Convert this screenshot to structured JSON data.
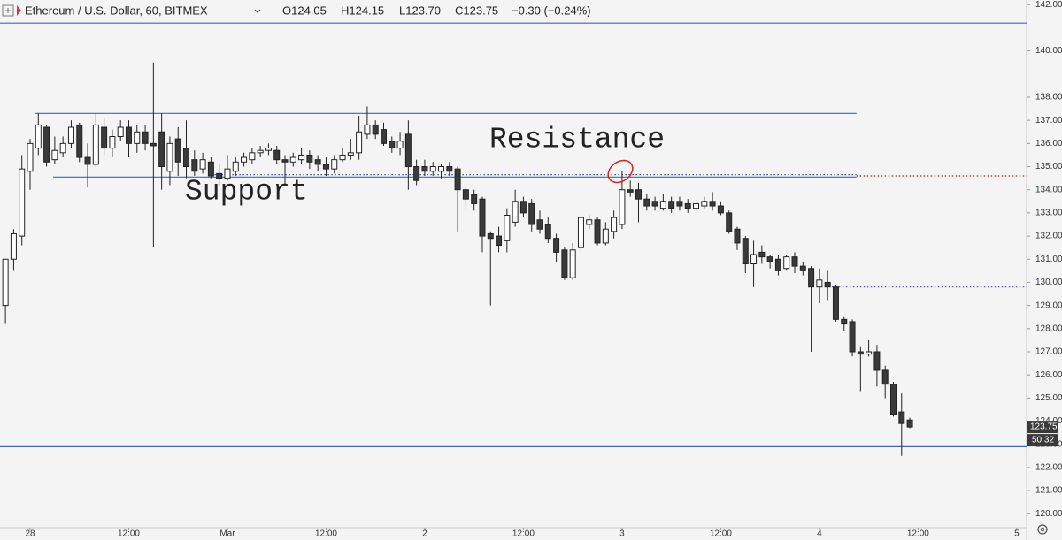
{
  "chart_data": {
    "type": "candlestick",
    "title": "Ethereum / U.S. Dollar, 60, BITMEX",
    "legend": [
      "O124.05",
      "H124.15",
      "L123.70",
      "C123.75",
      "−0.30 (−0.24%)"
    ],
    "countdown": "50:32",
    "annotations": [
      "Resistance",
      "Support"
    ],
    "up_color": "#ffffff",
    "down_color": "#3a3a3a",
    "xlim": [
      -3.66,
      121.2
    ],
    "xticks": [
      {
        "value": 0,
        "label": "28"
      },
      {
        "value": 12,
        "label": "12:00"
      },
      {
        "value": 24,
        "label": "Mar"
      },
      {
        "value": 36,
        "label": "12:00"
      },
      {
        "value": 48,
        "label": "2"
      },
      {
        "value": 60,
        "label": "12:00"
      },
      {
        "value": 72,
        "label": "3"
      },
      {
        "value": 84,
        "label": "12:00"
      },
      {
        "value": 96,
        "label": "4"
      },
      {
        "value": 108,
        "label": "12:00"
      },
      {
        "value": 120,
        "label": "5"
      }
    ],
    "ylim": [
      119.4,
      142.2
    ],
    "yticks": [
      {
        "value": 120,
        "label": "120.00"
      },
      {
        "value": 121,
        "label": "121.00"
      },
      {
        "value": 122,
        "label": "122.00"
      },
      {
        "value": 123,
        "label": "123.00"
      },
      {
        "value": 124,
        "label": "124.00"
      },
      {
        "value": 125,
        "label": "125.00"
      },
      {
        "value": 126,
        "label": "126.00"
      },
      {
        "value": 127,
        "label": "127.00"
      },
      {
        "value": 128,
        "label": "128.00"
      },
      {
        "value": 129,
        "label": "129.00"
      },
      {
        "value": 130,
        "label": "130.00"
      },
      {
        "value": 131,
        "label": "131.00"
      },
      {
        "value": 132,
        "label": "132.00"
      },
      {
        "value": 133,
        "label": "133.00"
      },
      {
        "value": 134,
        "label": "134.00"
      },
      {
        "value": 135,
        "label": "135.00"
      },
      {
        "value": 136,
        "label": "136.00"
      },
      {
        "value": 137,
        "label": "137.00"
      },
      {
        "value": 138,
        "label": "138.00"
      },
      {
        "value": 140,
        "label": "140.00"
      },
      {
        "value": 142,
        "label": "142.00"
      }
    ],
    "lines": [
      {
        "value": 141.2,
        "color": "#3f65c8",
        "style": "solid"
      },
      {
        "value": 122.9,
        "color": "#3f65c8",
        "style": "solid"
      },
      {
        "value": 137.3,
        "color": "#3f65c8",
        "style": "solid",
        "x_range": [
          0.6,
          100.5
        ]
      },
      {
        "value": 134.55,
        "color": "#3f65c8",
        "style": "solid",
        "x_range": [
          2.8,
          100.5
        ]
      },
      {
        "value": 134.65,
        "color": "#1f3a8a",
        "style": "dotted",
        "x_range": [
          22,
          100.5
        ]
      },
      {
        "value": 134.6,
        "color": "#b22222",
        "style": "dotted",
        "x_range": [
          100.5,
          121.2
        ]
      },
      {
        "value": 129.8,
        "color": "#5b3fd0",
        "style": "dotted",
        "x_range": [
          97.5,
          121.2
        ]
      }
    ],
    "x": [
      -3,
      -2,
      -1,
      0,
      1,
      2,
      3,
      4,
      5,
      6,
      7,
      8,
      9,
      10,
      11,
      12,
      13,
      14,
      15,
      16,
      17,
      18,
      19,
      20,
      21,
      22,
      23,
      24,
      25,
      26,
      27,
      28,
      29,
      30,
      31,
      32,
      33,
      34,
      35,
      36,
      37,
      38,
      39,
      40,
      41,
      42,
      43,
      44,
      45,
      46,
      47,
      48,
      49,
      50,
      51,
      52,
      53,
      54,
      55,
      56,
      57,
      58,
      59,
      60,
      61,
      62,
      63,
      64,
      65,
      66,
      67,
      68,
      69,
      70,
      71,
      72,
      73,
      74,
      75,
      76,
      77,
      78,
      79,
      80,
      81,
      82,
      83,
      84,
      85,
      86,
      87,
      88,
      89,
      90,
      91,
      92,
      93,
      94,
      95,
      96,
      97,
      98,
      99,
      100,
      101,
      102,
      103,
      104,
      105,
      106,
      107
    ],
    "ohlc": [
      [
        129.0,
        131.0,
        128.2,
        131.0
      ],
      [
        131.0,
        132.3,
        130.5,
        132.1
      ],
      [
        132.0,
        135.5,
        131.6,
        134.9
      ],
      [
        134.8,
        136.2,
        134.0,
        136.0
      ],
      [
        135.8,
        137.3,
        135.5,
        136.8
      ],
      [
        136.7,
        136.8,
        135.0,
        135.2
      ],
      [
        135.3,
        136.3,
        135.1,
        135.7
      ],
      [
        135.6,
        136.3,
        135.4,
        136.0
      ],
      [
        136.0,
        137.0,
        135.8,
        136.7
      ],
      [
        136.8,
        136.9,
        135.2,
        135.4
      ],
      [
        135.4,
        136.0,
        134.1,
        135.1
      ],
      [
        135.1,
        137.3,
        135.0,
        136.8
      ],
      [
        136.7,
        137.1,
        135.5,
        135.8
      ],
      [
        135.8,
        136.6,
        135.4,
        136.3
      ],
      [
        136.3,
        137.0,
        136.1,
        136.7
      ],
      [
        136.7,
        137.0,
        135.4,
        136.0
      ],
      [
        136.0,
        136.8,
        135.6,
        136.5
      ],
      [
        136.5,
        136.8,
        135.7,
        136.0
      ],
      [
        136.0,
        139.5,
        131.5,
        135.9
      ],
      [
        136.5,
        137.3,
        134.0,
        135.0
      ],
      [
        134.8,
        136.3,
        134.2,
        136.0
      ],
      [
        136.2,
        136.7,
        134.6,
        135.2
      ],
      [
        135.8,
        137.0,
        134.5,
        135.0
      ],
      [
        135.3,
        135.7,
        134.6,
        134.8
      ],
      [
        134.9,
        135.6,
        134.7,
        135.3
      ],
      [
        135.2,
        135.4,
        134.5,
        134.6
      ],
      [
        134.7,
        135.1,
        134.2,
        134.5
      ],
      [
        134.5,
        135.5,
        134.4,
        134.9
      ],
      [
        134.8,
        135.4,
        134.6,
        135.2
      ],
      [
        135.2,
        135.6,
        135.0,
        135.4
      ],
      [
        135.3,
        135.8,
        135.1,
        135.6
      ],
      [
        135.6,
        135.9,
        135.4,
        135.7
      ],
      [
        135.7,
        136.0,
        135.5,
        135.8
      ],
      [
        135.7,
        135.9,
        135.1,
        135.3
      ],
      [
        135.3,
        135.5,
        134.2,
        135.2
      ],
      [
        135.2,
        135.6,
        135.0,
        135.4
      ],
      [
        135.3,
        135.8,
        135.1,
        135.5
      ],
      [
        135.5,
        135.7,
        134.9,
        135.2
      ],
      [
        135.3,
        135.5,
        134.8,
        135.1
      ],
      [
        135.1,
        135.4,
        134.6,
        134.9
      ],
      [
        134.9,
        135.5,
        134.7,
        135.3
      ],
      [
        135.3,
        135.8,
        135.2,
        135.5
      ],
      [
        135.5,
        136.2,
        135.3,
        135.6
      ],
      [
        135.6,
        137.2,
        135.3,
        136.5
      ],
      [
        136.4,
        137.6,
        136.2,
        136.8
      ],
      [
        136.8,
        137.0,
        136.2,
        136.4
      ],
      [
        136.6,
        136.9,
        135.9,
        136.0
      ],
      [
        136.1,
        136.3,
        135.6,
        135.8
      ],
      [
        135.8,
        136.5,
        135.5,
        136.1
      ],
      [
        136.4,
        137.0,
        134.0,
        135.0
      ],
      [
        135.0,
        135.3,
        134.2,
        134.4
      ],
      [
        135.0,
        135.3,
        134.6,
        134.8
      ],
      [
        134.8,
        135.2,
        134.6,
        135.0
      ],
      [
        134.8,
        135.1,
        134.5,
        135.0
      ],
      [
        135.0,
        135.2,
        134.6,
        134.8
      ],
      [
        134.9,
        135.0,
        132.2,
        134.0
      ],
      [
        134.0,
        134.2,
        133.2,
        133.6
      ],
      [
        133.8,
        134.0,
        133.1,
        133.4
      ],
      [
        133.6,
        133.7,
        131.3,
        132.0
      ],
      [
        132.1,
        132.2,
        129.0,
        131.9
      ],
      [
        132.0,
        132.4,
        131.3,
        131.6
      ],
      [
        131.8,
        133.2,
        131.3,
        132.9
      ],
      [
        132.6,
        134.0,
        132.4,
        133.5
      ],
      [
        133.5,
        133.7,
        132.8,
        133.0
      ],
      [
        133.4,
        133.6,
        132.2,
        132.5
      ],
      [
        132.7,
        133.1,
        132.1,
        132.3
      ],
      [
        132.5,
        132.8,
        131.7,
        131.9
      ],
      [
        131.9,
        132.1,
        130.9,
        131.3
      ],
      [
        131.4,
        131.5,
        130.1,
        130.2
      ],
      [
        130.2,
        131.7,
        130.1,
        131.4
      ],
      [
        131.5,
        132.9,
        131.3,
        132.8
      ],
      [
        132.5,
        132.9,
        132.3,
        132.7
      ],
      [
        132.7,
        132.8,
        131.6,
        131.7
      ],
      [
        131.7,
        132.6,
        131.6,
        132.3
      ],
      [
        132.2,
        133.1,
        131.9,
        132.8
      ],
      [
        132.5,
        134.8,
        132.3,
        134.0
      ],
      [
        134.0,
        134.4,
        133.7,
        133.9
      ],
      [
        134.0,
        134.3,
        132.6,
        133.6
      ],
      [
        133.6,
        133.8,
        133.1,
        133.3
      ],
      [
        133.5,
        133.7,
        133.1,
        133.3
      ],
      [
        133.2,
        133.8,
        133.1,
        133.5
      ],
      [
        133.5,
        133.7,
        133.0,
        133.2
      ],
      [
        133.5,
        133.7,
        133.1,
        133.3
      ],
      [
        133.4,
        133.6,
        133.0,
        133.2
      ],
      [
        133.2,
        133.6,
        133.1,
        133.4
      ],
      [
        133.3,
        133.7,
        133.2,
        133.5
      ],
      [
        133.5,
        133.9,
        133.1,
        133.3
      ],
      [
        133.3,
        133.5,
        132.9,
        133.0
      ],
      [
        133.0,
        133.1,
        132.1,
        132.2
      ],
      [
        132.3,
        132.4,
        131.4,
        131.7
      ],
      [
        131.9,
        132.0,
        130.4,
        130.8
      ],
      [
        130.8,
        131.8,
        129.8,
        131.2
      ],
      [
        131.3,
        131.6,
        130.8,
        131.1
      ],
      [
        131.1,
        131.2,
        130.6,
        130.9
      ],
      [
        131.0,
        131.2,
        130.3,
        130.5
      ],
      [
        130.6,
        131.2,
        130.5,
        131.1
      ],
      [
        131.1,
        131.3,
        130.4,
        130.7
      ],
      [
        130.7,
        130.9,
        130.3,
        130.5
      ],
      [
        130.6,
        130.7,
        127.0,
        129.8
      ],
      [
        129.8,
        130.6,
        129.1,
        130.1
      ],
      [
        130.0,
        130.5,
        129.2,
        129.8
      ],
      [
        129.8,
        129.9,
        128.3,
        128.4
      ],
      [
        128.4,
        128.5,
        127.9,
        128.2
      ],
      [
        128.3,
        128.4,
        126.8,
        127.0
      ],
      [
        127.0,
        127.2,
        125.3,
        126.9
      ],
      [
        126.9,
        127.5,
        126.8,
        127.0
      ],
      [
        127.0,
        127.3,
        125.5,
        126.2
      ],
      [
        126.2,
        126.4,
        125.0,
        125.6
      ],
      [
        125.6,
        125.7,
        124.2,
        124.3
      ],
      [
        124.4,
        125.2,
        122.5,
        123.9
      ],
      [
        124.05,
        124.15,
        123.7,
        123.75
      ]
    ]
  }
}
